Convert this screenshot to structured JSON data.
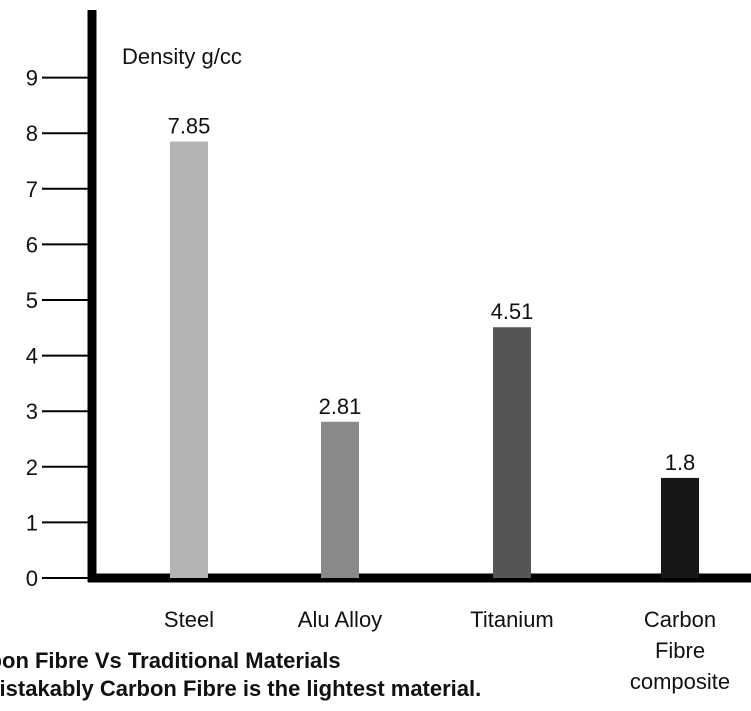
{
  "chart_data": {
    "type": "bar",
    "unit_label": "Density g/cc",
    "categories": [
      [
        "Steel"
      ],
      [
        "Alu Alloy"
      ],
      [
        "Titanium"
      ],
      [
        "Carbon",
        "Fibre",
        "composite"
      ]
    ],
    "values": [
      7.85,
      2.81,
      4.51,
      1.8
    ],
    "value_labels": [
      "7.85",
      "2.81",
      "4.51",
      "1.8"
    ],
    "colors": [
      "#b4b4b4",
      "#8a8a8a",
      "#555555",
      "#161616"
    ],
    "ylim": [
      0,
      10
    ],
    "y_ticks": [
      0,
      1,
      2,
      3,
      4,
      5,
      6,
      7,
      8,
      9
    ],
    "y_tick_labels": [
      "0",
      "1",
      "2",
      "3",
      "4",
      "5",
      "6",
      "7",
      "8",
      "9"
    ],
    "grid": false,
    "legend": "none"
  },
  "caption": {
    "line1": "rbon Fibre Vs Traditional Materials",
    "line2": "mistakably Carbon Fibre is the lightest material."
  }
}
